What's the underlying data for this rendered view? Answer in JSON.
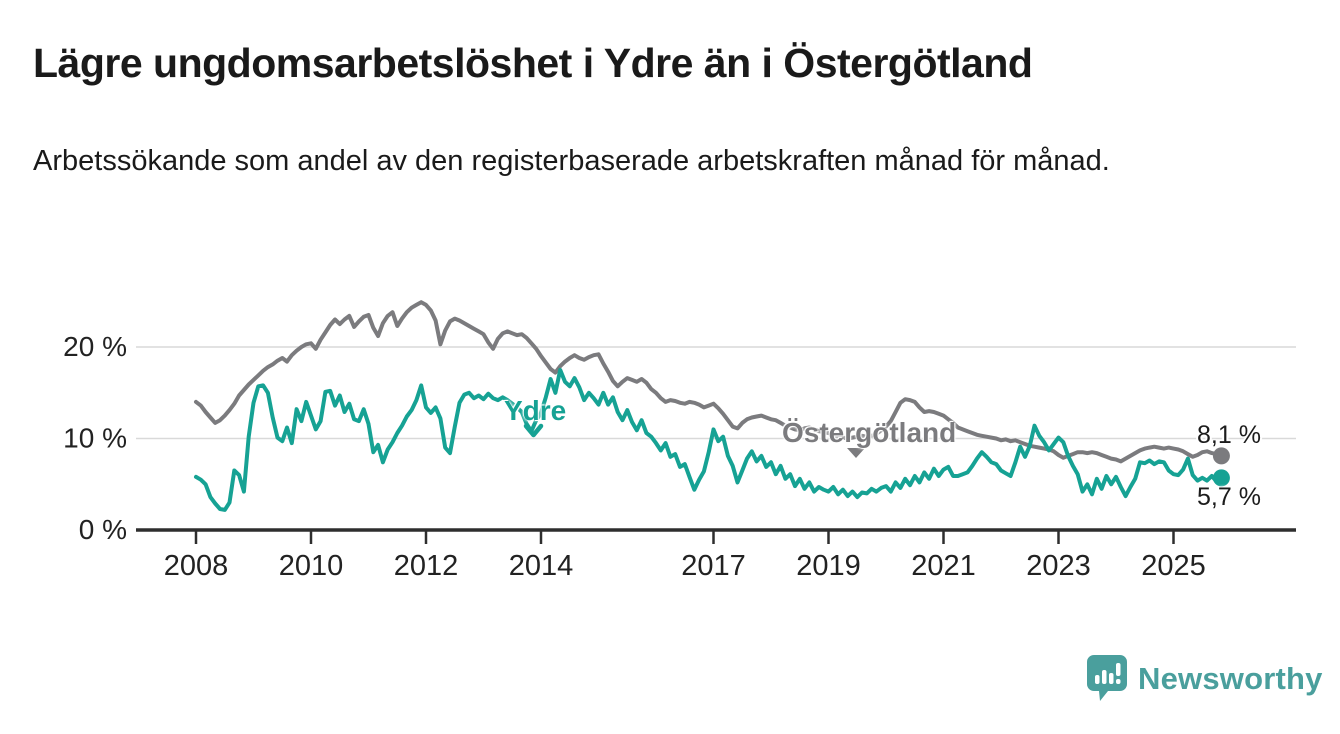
{
  "title": "Lägre ungdomsarbetslöshet i Ydre än i Östergötland",
  "subtitle": "Arbetssökande som andel av den registerbaserade arbetskraften månad för månad.",
  "branding": {
    "logo_text": "Newsworthy",
    "logo_icon": "bar-chart-speech-bubble-icon",
    "color": "#4a9f9d"
  },
  "chart_data": {
    "type": "line",
    "frequency": "monthly",
    "x_start": "2008-01",
    "x_end": "2025-11",
    "x_tick_years": [
      2008,
      2010,
      2012,
      2014,
      2017,
      2019,
      2021,
      2023,
      2025
    ],
    "y_ticks": [
      {
        "value": 0,
        "label": "0 %"
      },
      {
        "value": 10,
        "label": "10 %"
      },
      {
        "value": 20,
        "label": "20 %"
      }
    ],
    "ylim": [
      0,
      26.5
    ],
    "grid": "horizontal",
    "legend_position": "inline-labels",
    "colors": {
      "grid": "#d9d9d9",
      "axis": "#2e2e2e",
      "tick_text": "#222222",
      "value_label_text": "#1c1c1c"
    },
    "series": [
      {
        "name": "Östergötland",
        "color": "#7b7b7e",
        "end_label": "8,1 %",
        "end_value": 8.1,
        "values": [
          14.0,
          13.6,
          12.9,
          12.3,
          11.7,
          12.0,
          12.5,
          13.1,
          13.8,
          14.7,
          15.3,
          15.9,
          16.4,
          16.9,
          17.4,
          17.8,
          18.1,
          18.5,
          18.8,
          18.4,
          19.1,
          19.6,
          20.0,
          20.3,
          20.4,
          19.8,
          20.8,
          21.6,
          22.4,
          23.0,
          22.5,
          23.0,
          23.4,
          22.2,
          22.8,
          23.3,
          23.5,
          22.1,
          21.2,
          22.6,
          23.4,
          23.8,
          22.3,
          23.1,
          23.8,
          24.3,
          24.6,
          24.9,
          24.6,
          24.0,
          22.9,
          20.3,
          21.8,
          22.8,
          23.1,
          22.9,
          22.6,
          22.3,
          22.0,
          21.7,
          21.4,
          20.5,
          19.8,
          20.9,
          21.5,
          21.7,
          21.5,
          21.3,
          21.4,
          21.0,
          20.4,
          19.8,
          19.0,
          18.3,
          17.6,
          17.2,
          17.9,
          18.4,
          18.8,
          19.1,
          18.8,
          18.6,
          18.9,
          19.1,
          19.2,
          18.2,
          17.3,
          16.3,
          15.7,
          16.2,
          16.6,
          16.4,
          16.2,
          16.5,
          16.1,
          15.4,
          15.0,
          14.4,
          14.0,
          14.2,
          14.1,
          13.9,
          13.8,
          14.0,
          13.9,
          13.7,
          13.4,
          13.6,
          13.8,
          13.3,
          12.7,
          12.0,
          11.3,
          11.1,
          11.7,
          12.1,
          12.3,
          12.4,
          12.5,
          12.3,
          12.1,
          12.0,
          11.7,
          11.4,
          11.2,
          11.0,
          10.9,
          11.1,
          11.2,
          11.0,
          10.8,
          10.7,
          10.6,
          10.4,
          10.2,
          10.1,
          10.0,
          10.1,
          10.2,
          10.3,
          10.2,
          10.3,
          10.5,
          10.9,
          11.3,
          11.9,
          12.9,
          13.9,
          14.3,
          14.2,
          14.0,
          13.4,
          12.9,
          13.0,
          12.9,
          12.7,
          12.5,
          12.1,
          11.7,
          11.2,
          11.0,
          10.8,
          10.6,
          10.4,
          10.3,
          10.2,
          10.1,
          10.0,
          9.8,
          9.9,
          9.7,
          9.8,
          9.6,
          9.4,
          9.2,
          9.1,
          9.0,
          8.9,
          8.8,
          8.6,
          8.2,
          7.9,
          8.1,
          8.3,
          8.5,
          8.5,
          8.4,
          8.5,
          8.4,
          8.2,
          8.0,
          7.8,
          7.7,
          7.5,
          7.8,
          8.1,
          8.4,
          8.7,
          8.9,
          9.0,
          9.1,
          9.0,
          8.9,
          9.0,
          8.9,
          8.8,
          8.6,
          8.3,
          8.0,
          8.2,
          8.5,
          8.6,
          8.4,
          8.3,
          8.1
        ]
      },
      {
        "name": "Ydre",
        "color": "#16a294",
        "end_label": "5,7 %",
        "end_value": 5.7,
        "values": [
          5.8,
          5.5,
          5.0,
          3.6,
          2.9,
          2.3,
          2.2,
          3.0,
          6.5,
          6.0,
          4.2,
          10.2,
          13.9,
          15.7,
          15.8,
          15.0,
          12.3,
          10.1,
          9.7,
          11.2,
          9.5,
          13.2,
          11.9,
          14.0,
          12.5,
          11.0,
          11.9,
          15.1,
          15.2,
          13.6,
          14.7,
          12.9,
          13.8,
          12.1,
          11.9,
          13.2,
          11.6,
          8.5,
          9.3,
          7.4,
          8.8,
          9.6,
          10.6,
          11.4,
          12.4,
          13.1,
          14.2,
          15.8,
          13.4,
          12.8,
          13.4,
          12.2,
          9.0,
          8.4,
          11.3,
          13.9,
          14.8,
          15.0,
          14.4,
          14.7,
          14.3,
          14.9,
          14.4,
          14.2,
          14.5,
          14.2,
          13.8,
          13.4,
          12.9,
          11.6,
          10.8,
          12.0,
          12.8,
          14.5,
          16.5,
          15.0,
          17.5,
          16.2,
          15.7,
          16.6,
          15.6,
          14.2,
          15.0,
          14.4,
          13.7,
          15.0,
          13.7,
          14.5,
          12.9,
          12.0,
          13.1,
          11.8,
          10.9,
          12.0,
          10.6,
          10.2,
          9.5,
          8.7,
          9.5,
          8.0,
          8.3,
          6.9,
          7.2,
          5.8,
          4.4,
          5.5,
          6.4,
          8.5,
          11.0,
          9.7,
          10.2,
          8.1,
          7.0,
          5.2,
          6.5,
          7.8,
          8.6,
          7.5,
          8.1,
          6.9,
          7.4,
          6.1,
          7.0,
          5.6,
          6.1,
          4.8,
          5.6,
          4.5,
          5.2,
          4.2,
          4.7,
          4.4,
          4.2,
          4.7,
          3.9,
          4.4,
          3.7,
          4.2,
          3.6,
          4.1,
          4.0,
          4.5,
          4.2,
          4.6,
          4.8,
          4.2,
          5.2,
          4.6,
          5.6,
          4.9,
          5.9,
          5.2,
          6.3,
          5.6,
          6.7,
          5.9,
          6.6,
          6.9,
          5.9,
          5.9,
          6.1,
          6.3,
          7.0,
          7.8,
          8.5,
          8.0,
          7.4,
          7.2,
          6.5,
          6.2,
          5.9,
          7.4,
          9.1,
          8.0,
          9.2,
          11.4,
          10.3,
          9.6,
          8.7,
          9.4,
          10.1,
          9.6,
          8.1,
          7.0,
          6.1,
          4.2,
          5.0,
          3.9,
          5.6,
          4.5,
          5.9,
          5.0,
          5.8,
          4.7,
          3.7,
          4.7,
          5.6,
          7.4,
          7.3,
          7.6,
          7.2,
          7.5,
          7.4,
          6.5,
          6.1,
          6.0,
          6.6,
          7.8,
          6.0,
          5.4,
          5.7,
          5.4,
          5.9,
          5.3,
          5.7
        ]
      }
    ],
    "annotations": [
      {
        "series": "Ydre",
        "pointer": "chevron-down"
      },
      {
        "series": "Östergötland",
        "pointer": "triangle-down"
      }
    ]
  }
}
